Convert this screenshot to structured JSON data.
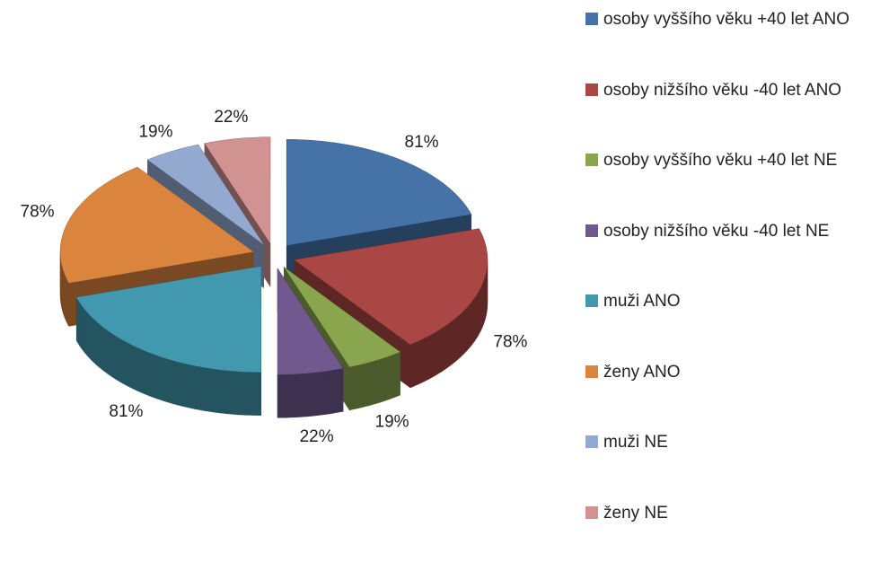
{
  "chart_data": {
    "type": "pie",
    "categories": [
      "osoby vyššího věku +40 let ANO",
      "osoby nižšího věku -40 let ANO",
      "osoby vyššího věku +40 let NE",
      "osoby nižšího věku -40 let NE",
      "muži ANO",
      "ženy ANO",
      "muži NE",
      "ženy NE"
    ],
    "values": [
      81,
      78,
      19,
      22,
      81,
      78,
      19,
      22
    ],
    "value_labels": [
      "81%",
      "78%",
      "19%",
      "22%",
      "81%",
      "78%",
      "19%",
      "22%"
    ],
    "colors": [
      "#4572a7",
      "#aa4643",
      "#89a54e",
      "#71588f",
      "#4198af",
      "#db843d",
      "#93a9cf",
      "#d19392"
    ],
    "legend": "right"
  }
}
